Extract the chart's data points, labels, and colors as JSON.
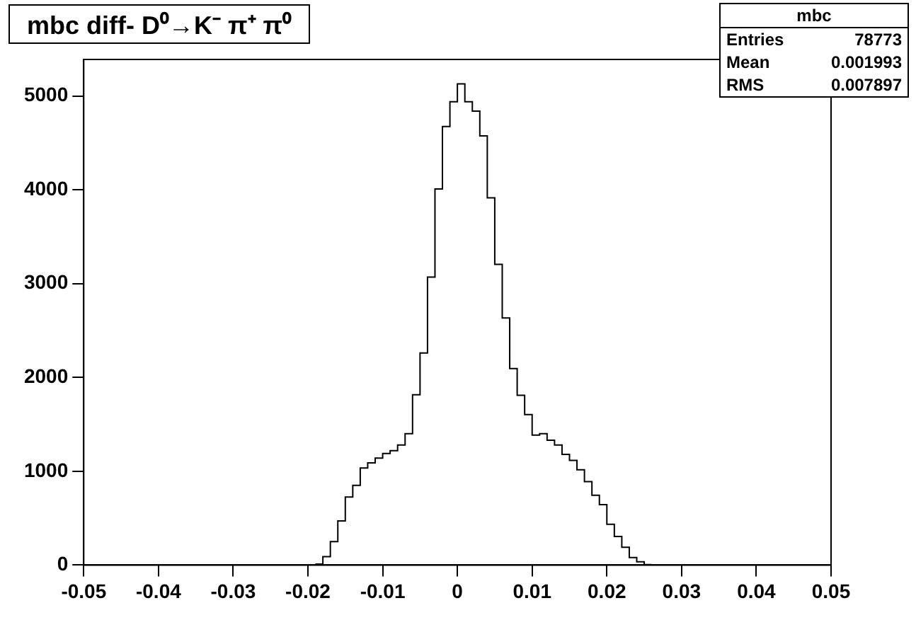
{
  "chart_data": {
    "type": "histogram",
    "title": "mbc diff- D⁰→K⁻ π⁺ π⁰",
    "bins": [
      -0.019,
      -0.018,
      -0.017,
      -0.016,
      -0.015,
      -0.014,
      -0.013,
      -0.012,
      -0.011,
      -0.01,
      -0.009,
      -0.008,
      -0.007,
      -0.006,
      -0.005,
      -0.004,
      -0.003,
      -0.002,
      -0.001,
      0,
      0.001,
      0.002,
      0.003,
      0.004,
      0.005,
      0.006,
      0.007,
      0.008,
      0.009,
      0.01,
      0.011,
      0.012,
      0.013,
      0.014,
      0.015,
      0.016,
      0.017,
      0.018,
      0.019,
      0.02,
      0.021,
      0.022,
      0.023,
      0.024,
      0.025,
      0.026
    ],
    "values": [
      10,
      90,
      250,
      470,
      725,
      850,
      1035,
      1090,
      1140,
      1190,
      1220,
      1280,
      1400,
      1815,
      2260,
      3070,
      4010,
      4675,
      4940,
      5130,
      4940,
      4840,
      4575,
      3915,
      3205,
      2635,
      2095,
      1810,
      1605,
      1385,
      1400,
      1330,
      1280,
      1180,
      1115,
      1015,
      890,
      745,
      645,
      435,
      305,
      190,
      80,
      35,
      5
    ],
    "color": "#000000",
    "xlim": [
      -0.05,
      0.05
    ],
    "xticks": [
      -0.05,
      -0.04,
      -0.03,
      -0.02,
      -0.01,
      0,
      0.01,
      0.02,
      0.03,
      0.04,
      0.05
    ],
    "ylim": [
      0,
      5390
    ],
    "yticks": [
      0,
      1000,
      2000,
      3000,
      4000,
      5000
    ],
    "grid": false,
    "legend": false,
    "annotations": [
      "mbc",
      "Entries 78773",
      "Mean 0.001993",
      "RMS 0.007897"
    ]
  }
}
